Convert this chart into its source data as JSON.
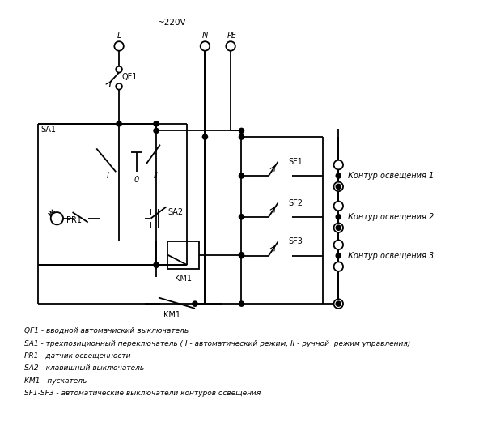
{
  "background_color": "#ffffff",
  "legend_lines": [
    "QF1 - вводной автомачиский выключатель",
    "SA1 - трехпозиционный переключатель ( I - автоматический режим, II - ручной  режим управления)",
    "PR1 - датчик освещенности",
    "SA2 - клавишный выключатель",
    "KM1 - пускатель",
    "SF1-SF3 - автоматические выключатели контуров освещения"
  ],
  "voltage_label": "~220V",
  "L_label": "L",
  "N_label": "N",
  "PE_label": "PE",
  "QF1_label": "QF1",
  "SA1_label": "SA1",
  "PR1_label": "PR1",
  "SA2_label": "SA2",
  "KM1_label": "KM1",
  "SF1_label": "SF1",
  "SF2_label": "SF2",
  "SF3_label": "SF3",
  "I_label": "I",
  "0_label": "0",
  "II_label": "II",
  "k1_label": "Контур освещения 1",
  "k2_label": "Контур освещения 2",
  "k3_label": "Контур освещения 3"
}
